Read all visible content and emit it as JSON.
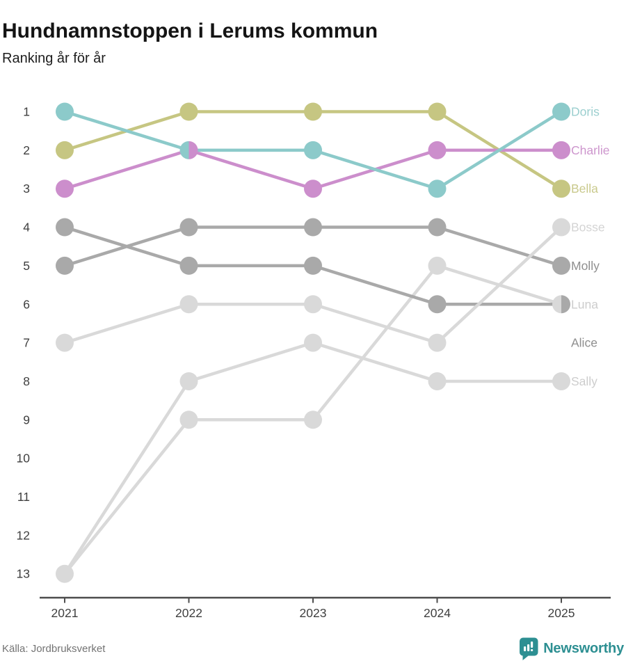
{
  "header": {
    "title": "Hundnamnstoppen i Lerums kommun",
    "subtitle": "Ranking år för år"
  },
  "footer": {
    "source": "Källa: Jordbruksverket",
    "brand_name": "Newsworthy",
    "brand_color": "#2d8f92"
  },
  "chart_data": {
    "type": "line",
    "subtype": "bump-ranking",
    "x": [
      2021,
      2022,
      2023,
      2024,
      2025
    ],
    "x_labels": [
      "2021",
      "2022",
      "2023",
      "2024",
      "2025"
    ],
    "rank_labels": [
      "1",
      "2",
      "3",
      "4",
      "5",
      "6",
      "7",
      "8",
      "9",
      "10",
      "11",
      "12",
      "13"
    ],
    "ylim": [
      1,
      13
    ],
    "y_inverted": true,
    "grid": false,
    "legend_position": "right-of-last-point",
    "axis_color": "#4d4d4d",
    "tick_text_color": "#3f3f3f",
    "series": [
      {
        "name": "Doris",
        "color": "#8ccaca",
        "label_color": "#9bcfcf",
        "values": [
          1,
          2,
          2,
          3,
          1
        ],
        "label_row": 1
      },
      {
        "name": "Charlie",
        "color": "#cc8ecc",
        "label_color": "#cd96cd",
        "values": [
          3,
          2,
          3,
          2,
          2
        ],
        "label_row": 2
      },
      {
        "name": "Bella",
        "color": "#c6c682",
        "label_color": "#c9c98c",
        "values": [
          2,
          1,
          1,
          1,
          3
        ],
        "label_row": 3
      },
      {
        "name": "Bosse",
        "color": "#d9d9d9",
        "label_color": "#d4d4d4",
        "values": [
          7,
          6,
          6,
          7,
          4
        ],
        "label_row": 4
      },
      {
        "name": "Molly",
        "color": "#a9a9a9",
        "label_color": "#8f8f8f",
        "values": [
          5,
          4,
          4,
          4,
          5
        ],
        "label_row": 5
      },
      {
        "name": "Luna",
        "color": "#d9d9d9",
        "label_color": "#cdcdcd",
        "values": [
          13,
          9,
          9,
          5,
          6
        ],
        "label_row": 6
      },
      {
        "name": "Alice",
        "color": "#a9a9a9",
        "label_color": "#8f8f8f",
        "values": [
          4,
          5,
          5,
          6,
          6
        ],
        "label_row": 7
      },
      {
        "name": "Sally",
        "color": "#d9d9d9",
        "label_color": "#cdcdcd",
        "values": [
          13,
          8,
          7,
          8,
          8
        ],
        "label_row": 8
      }
    ],
    "draw_order": [
      "Luna",
      "Sally",
      "Alice",
      "Molly",
      "Bosse",
      "Bella",
      "Charlie",
      "Doris"
    ]
  }
}
